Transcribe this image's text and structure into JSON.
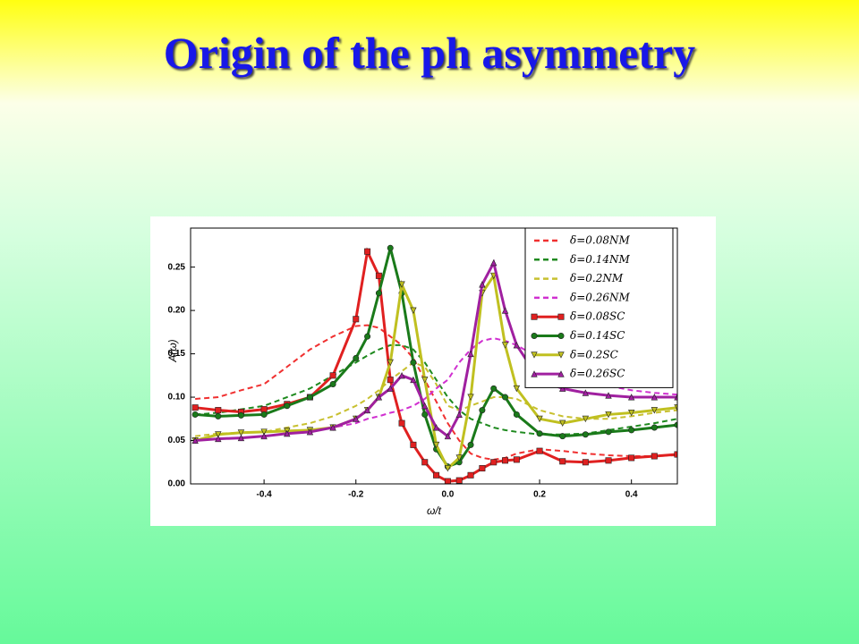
{
  "title": "Origin of the ph asymmetry",
  "chart_data": {
    "type": "line",
    "xlabel": "ω/t",
    "ylabel": "A(ω)",
    "x": [
      -0.55,
      -0.5,
      -0.45,
      -0.4,
      -0.35,
      -0.3,
      -0.25,
      -0.2,
      -0.175,
      -0.15,
      -0.125,
      -0.1,
      -0.075,
      -0.05,
      -0.025,
      0,
      0.025,
      0.05,
      0.075,
      0.1,
      0.125,
      0.15,
      0.2,
      0.25,
      0.3,
      0.35,
      0.4,
      0.45,
      0.5
    ],
    "xlim": [
      -0.56,
      0.5
    ],
    "xticks": [
      -0.4,
      -0.2,
      {
        "value": 0,
        "label": "0.0"
      },
      0.2,
      0.4
    ],
    "ylim": [
      0,
      0.295
    ],
    "yticks": [
      {
        "value": 0,
        "label": "0.00"
      },
      {
        "value": 0.05,
        "label": "0.05"
      },
      {
        "value": 0.1,
        "label": "0.10"
      },
      {
        "value": 0.15,
        "label": "0.15"
      },
      {
        "value": 0.2,
        "label": "0.20"
      },
      {
        "value": 0.25,
        "label": "0.25"
      }
    ],
    "legend": "upper right",
    "series": [
      {
        "name": "δ=0.08NM",
        "color": "#f03030",
        "linestyle": "dashed",
        "marker": "none",
        "values": [
          0.098,
          0.1,
          0.108,
          0.115,
          0.135,
          0.155,
          0.17,
          0.182,
          0.183,
          0.18,
          0.17,
          0.16,
          0.145,
          0.12,
          0.095,
          0.07,
          0.05,
          0.035,
          0.03,
          0.028,
          0.03,
          0.035,
          0.04,
          0.038,
          0.035,
          0.033,
          0.032,
          0.032,
          0.033
        ]
      },
      {
        "name": "δ=0.14NM",
        "color": "#1f8a1f",
        "linestyle": "dashed",
        "marker": "none",
        "values": [
          0.08,
          0.082,
          0.086,
          0.09,
          0.1,
          0.11,
          0.125,
          0.14,
          0.148,
          0.155,
          0.16,
          0.16,
          0.155,
          0.14,
          0.12,
          0.1,
          0.085,
          0.075,
          0.07,
          0.065,
          0.062,
          0.06,
          0.057,
          0.057,
          0.058,
          0.062,
          0.066,
          0.07,
          0.075
        ]
      },
      {
        "name": "δ=0.2NM",
        "color": "#c8c030",
        "linestyle": "dashed",
        "marker": "none",
        "values": [
          0.055,
          0.058,
          0.059,
          0.06,
          0.065,
          0.07,
          0.078,
          0.09,
          0.098,
          0.108,
          0.12,
          0.13,
          0.14,
          0.135,
          0.115,
          0.09,
          0.085,
          0.09,
          0.095,
          0.1,
          0.1,
          0.098,
          0.085,
          0.078,
          0.075,
          0.075,
          0.078,
          0.082,
          0.085
        ]
      },
      {
        "name": "δ=0.26NM",
        "color": "#d030d0",
        "linestyle": "dashed",
        "marker": "none",
        "values": [
          0.05,
          0.052,
          0.053,
          0.055,
          0.058,
          0.06,
          0.065,
          0.07,
          0.075,
          0.078,
          0.082,
          0.085,
          0.09,
          0.098,
          0.11,
          0.12,
          0.14,
          0.155,
          0.165,
          0.168,
          0.165,
          0.16,
          0.145,
          0.13,
          0.12,
          0.113,
          0.108,
          0.105,
          0.103
        ]
      },
      {
        "name": "δ=0.08SC",
        "color": "#e02020",
        "linestyle": "solid",
        "marker": "square",
        "values": [
          0.088,
          0.085,
          0.083,
          0.086,
          0.092,
          0.1,
          0.125,
          0.19,
          0.268,
          0.24,
          0.12,
          0.07,
          0.045,
          0.025,
          0.01,
          0.003,
          0.004,
          0.01,
          0.018,
          0.025,
          0.027,
          0.028,
          0.038,
          0.026,
          0.025,
          0.027,
          0.03,
          0.032,
          0.034
        ]
      },
      {
        "name": "δ=0.14SC",
        "color": "#1a7a1a",
        "linestyle": "solid",
        "marker": "circle",
        "values": [
          0.08,
          0.078,
          0.079,
          0.08,
          0.09,
          0.1,
          0.115,
          0.145,
          0.17,
          0.22,
          0.272,
          0.22,
          0.14,
          0.08,
          0.04,
          0.02,
          0.025,
          0.045,
          0.085,
          0.11,
          0.1,
          0.08,
          0.058,
          0.055,
          0.057,
          0.06,
          0.062,
          0.065,
          0.068
        ]
      },
      {
        "name": "δ=0.2SC",
        "color": "#c0c020",
        "linestyle": "solid",
        "marker": "triangle-down",
        "values": [
          0.05,
          0.057,
          0.059,
          0.06,
          0.061,
          0.062,
          0.065,
          0.075,
          0.085,
          0.1,
          0.14,
          0.23,
          0.2,
          0.12,
          0.045,
          0.018,
          0.03,
          0.1,
          0.22,
          0.24,
          0.16,
          0.11,
          0.075,
          0.07,
          0.075,
          0.08,
          0.082,
          0.085,
          0.088
        ]
      },
      {
        "name": "δ=0.26SC",
        "color": "#a020a0",
        "linestyle": "solid",
        "marker": "triangle-up",
        "values": [
          0.05,
          0.052,
          0.053,
          0.055,
          0.058,
          0.06,
          0.065,
          0.075,
          0.085,
          0.1,
          0.11,
          0.125,
          0.12,
          0.09,
          0.065,
          0.055,
          0.08,
          0.15,
          0.23,
          0.255,
          0.2,
          0.16,
          0.12,
          0.11,
          0.105,
          0.102,
          0.1,
          0.1,
          0.1
        ]
      }
    ]
  }
}
